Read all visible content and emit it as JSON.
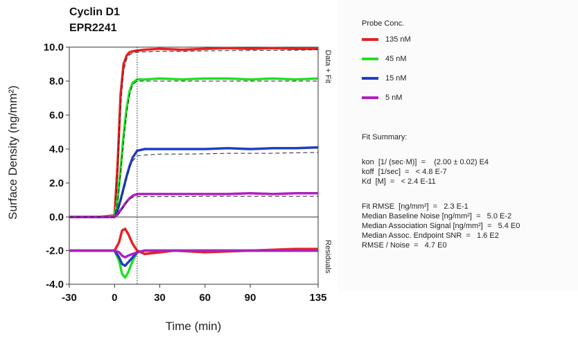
{
  "chart_data": {
    "type": "line",
    "title": [
      "Cyclin D1",
      "EPR2241"
    ],
    "xlabel": "Time (min)",
    "ylabel": "Surface Density (ng/mm²)",
    "xlim": [
      -30,
      135
    ],
    "main_ylim": [
      0,
      10
    ],
    "residual_ylim": [
      -4,
      0
    ],
    "x_ticks": [
      "-30",
      "0",
      "30",
      "60",
      "90",
      "135"
    ],
    "main_y_ticks": [
      "10.0",
      "8.0",
      "6.0",
      "4.0",
      "2.0",
      "0.0"
    ],
    "residual_y_ticks": [
      "-2.0",
      "-4.0"
    ],
    "panel_labels": {
      "main": "Data + Fit",
      "residual": "Residuals"
    },
    "association_end_marker_x": 15,
    "series": [
      {
        "name": "135 nM",
        "color": "#e82020",
        "x": [
          -30,
          -20,
          -10,
          0,
          2,
          4,
          6,
          8,
          10,
          12,
          15,
          20,
          30,
          45,
          60,
          75,
          90,
          105,
          120,
          135
        ],
        "data": [
          0.0,
          0.0,
          0.0,
          0.1,
          3.0,
          7.2,
          9.0,
          9.5,
          9.7,
          9.75,
          9.8,
          9.85,
          9.9,
          9.85,
          9.9,
          9.95,
          9.9,
          9.95,
          9.9,
          9.9
        ],
        "fit": [
          0.0,
          0.0,
          0.0,
          0.0,
          2.6,
          6.5,
          8.6,
          9.3,
          9.55,
          9.65,
          9.7,
          9.72,
          9.75,
          9.75,
          9.78,
          9.8,
          9.8,
          9.82,
          9.82,
          9.85
        ],
        "residuals_x": [
          -30,
          -20,
          -10,
          0,
          3,
          5,
          7,
          9,
          12,
          15,
          20,
          40,
          60,
          90,
          120,
          135
        ],
        "residuals": [
          -2.0,
          -2.0,
          -2.0,
          -2.0,
          -1.5,
          -0.8,
          -0.7,
          -1.0,
          -1.6,
          -2.0,
          -2.2,
          -2.0,
          -2.1,
          -2.0,
          -1.9,
          -1.9
        ]
      },
      {
        "name": "45 nM",
        "color": "#22e022",
        "x": [
          -30,
          -20,
          -10,
          0,
          2,
          4,
          6,
          8,
          10,
          12,
          15,
          20,
          30,
          45,
          60,
          75,
          90,
          105,
          120,
          135
        ],
        "data": [
          0.0,
          0.0,
          0.0,
          0.05,
          1.0,
          2.8,
          4.8,
          6.4,
          7.4,
          7.9,
          8.1,
          8.1,
          8.15,
          8.1,
          8.15,
          8.15,
          8.1,
          8.15,
          8.1,
          8.15
        ],
        "fit": [
          0.0,
          0.0,
          0.0,
          0.0,
          0.9,
          2.6,
          4.5,
          6.1,
          7.2,
          7.8,
          8.0,
          8.0,
          8.0,
          8.0,
          8.0,
          8.0,
          8.0,
          8.0,
          8.0,
          8.0
        ],
        "residuals_x": [
          -30,
          -20,
          -10,
          0,
          3,
          5,
          7,
          9,
          12,
          15,
          20,
          40,
          60,
          90,
          120,
          135
        ],
        "residuals": [
          -2.0,
          -2.0,
          -2.0,
          -2.0,
          -2.6,
          -3.4,
          -3.6,
          -3.3,
          -2.6,
          -2.1,
          -2.0,
          -2.0,
          -2.0,
          -2.0,
          -2.0,
          -2.0
        ]
      },
      {
        "name": "15 nM",
        "color": "#1f3fc0",
        "x": [
          -30,
          -20,
          -10,
          0,
          2,
          4,
          6,
          8,
          10,
          12,
          15,
          20,
          30,
          45,
          60,
          75,
          90,
          105,
          120,
          135
        ],
        "data": [
          0.0,
          0.0,
          0.0,
          0.0,
          0.4,
          1.0,
          1.7,
          2.4,
          3.0,
          3.5,
          3.9,
          4.0,
          4.0,
          4.0,
          4.0,
          4.05,
          4.0,
          4.05,
          4.05,
          4.1
        ],
        "fit": [
          0.0,
          0.0,
          0.0,
          0.0,
          0.3,
          0.9,
          1.6,
          2.3,
          2.9,
          3.3,
          3.6,
          3.65,
          3.7,
          3.7,
          3.72,
          3.75,
          3.75,
          3.75,
          3.78,
          3.8
        ],
        "residuals_x": [
          -30,
          -20,
          -10,
          0,
          3,
          5,
          7,
          9,
          12,
          15,
          20,
          40,
          60,
          90,
          120,
          135
        ],
        "residuals": [
          -2.0,
          -2.0,
          -2.0,
          -2.0,
          -2.4,
          -2.8,
          -2.9,
          -2.7,
          -2.4,
          -2.1,
          -2.0,
          -2.0,
          -2.0,
          -2.0,
          -2.0,
          -2.0
        ]
      },
      {
        "name": "5 nM",
        "color": "#b020c0",
        "x": [
          -30,
          -20,
          -10,
          0,
          2,
          4,
          6,
          8,
          10,
          12,
          15,
          20,
          30,
          45,
          60,
          75,
          90,
          105,
          120,
          135
        ],
        "data": [
          0.0,
          0.0,
          0.0,
          0.0,
          0.15,
          0.4,
          0.65,
          0.9,
          1.1,
          1.25,
          1.35,
          1.35,
          1.35,
          1.35,
          1.35,
          1.35,
          1.4,
          1.35,
          1.4,
          1.4
        ],
        "fit": [
          0.0,
          0.0,
          0.0,
          0.0,
          0.1,
          0.35,
          0.6,
          0.85,
          1.05,
          1.15,
          1.2,
          1.2,
          1.2,
          1.2,
          1.22,
          1.22,
          1.22,
          1.22,
          1.22,
          1.22
        ],
        "residuals_x": [
          -30,
          -20,
          -10,
          0,
          3,
          5,
          7,
          9,
          12,
          15,
          20,
          40,
          60,
          90,
          120,
          135
        ],
        "residuals": [
          -2.0,
          -2.0,
          -2.0,
          -2.0,
          -2.1,
          -2.3,
          -2.4,
          -2.3,
          -2.2,
          -2.1,
          -2.0,
          -2.0,
          -2.0,
          -2.0,
          -2.0,
          -2.0
        ]
      }
    ],
    "legend_title": "Probe Conc.",
    "fit_summary": {
      "heading": "Fit Summary:",
      "lines": [
        "kon  [1/ (sec·M)]  =    (2.00 ± 0.02) E4",
        "koff  [1/sec]  =   < 4.8 E-7",
        "Kd  [M]  =   < 2.4 E-11",
        "",
        "Fit RMSE  [ng/mm²]  =   2.3 E-1",
        "Median Baseline Noise [ng/mm²]  =   5.0 E-2",
        "Median Association Signal [ng/mm²]  =   5.4 E0",
        "Median Assoc. Endpoint SNR  =   1.6 E2",
        "RMSE / Noise  =   4.7 E0"
      ]
    }
  }
}
